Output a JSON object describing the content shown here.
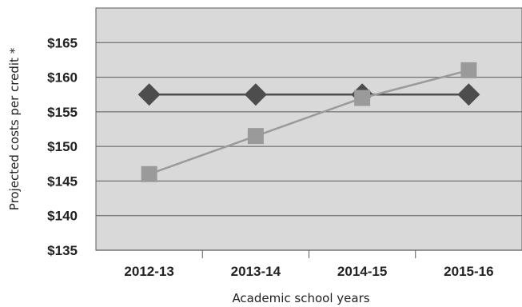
{
  "chart_data": {
    "type": "line",
    "categories": [
      "2012-13",
      "2013-14",
      "2014-15",
      "2015-16"
    ],
    "xlabel": "Academic school years",
    "ylabel": "Projected costs per credit *",
    "ylim": [
      135,
      170
    ],
    "yticks": [
      135,
      140,
      145,
      150,
      155,
      160,
      165
    ],
    "ytick_labels": [
      "$135",
      "$140",
      "$145",
      "$150",
      "$155",
      "$160",
      "$165"
    ],
    "grid": true,
    "legend": "none",
    "series": [
      {
        "values": [
          157.5,
          157.5,
          157.5,
          157.5
        ],
        "marker": "diamond",
        "color": "#4d4d4d"
      },
      {
        "values": [
          146,
          151.5,
          157,
          161
        ],
        "marker": "square",
        "color": "#9a9a9a"
      }
    ],
    "colors": {
      "plot_background": "#d9d9d9",
      "gridline": "#5a5a5a",
      "border": "#5a5a5a"
    }
  }
}
